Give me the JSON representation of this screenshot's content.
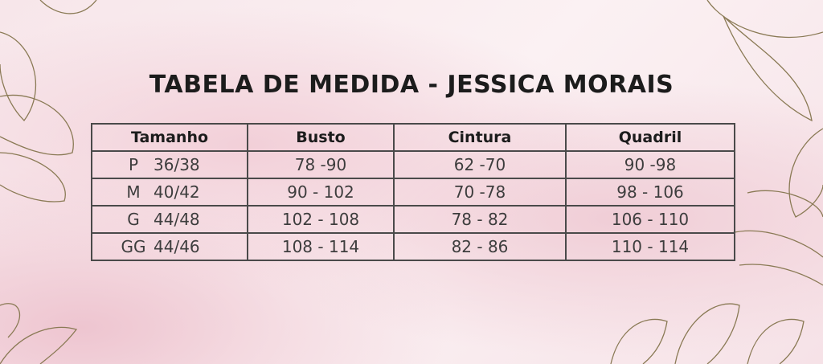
{
  "title": "TABELA DE MEDIDA - JESSICA MORAIS",
  "table": {
    "headers": [
      "Tamanho",
      "Busto",
      "Cintura",
      "Quadril"
    ],
    "rows": [
      {
        "size": "P",
        "number": "36/38",
        "busto": "78 -90",
        "cintura": "62 -70",
        "quadril": "90 -98"
      },
      {
        "size": "M",
        "number": "40/42",
        "busto": "90 - 102",
        "cintura": "70 -78",
        "quadril": "98 - 106"
      },
      {
        "size": "G",
        "number": "44/48",
        "busto": "102 - 108",
        "cintura": "78 - 82",
        "quadril": "106 - 110"
      },
      {
        "size": "GG",
        "number": "44/46",
        "busto": "108 - 114",
        "cintura": "82 - 86",
        "quadril": "110 - 114"
      }
    ]
  },
  "colors": {
    "line": "#4a4a4a",
    "flower_outline": "#8a7a55",
    "background": "#f7e6ea"
  }
}
